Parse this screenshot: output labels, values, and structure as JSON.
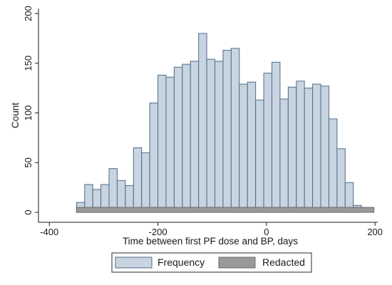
{
  "chart_data": {
    "type": "bar",
    "title": "",
    "xlabel": "Time between first PF dose and BP, days",
    "ylabel": "Count",
    "xlim": [
      -420,
      205
    ],
    "ylim": [
      -10,
      205
    ],
    "x_ticks": [
      -400,
      -200,
      0,
      200
    ],
    "y_ticks": [
      0,
      50,
      100,
      150,
      200
    ],
    "bin_width": 15,
    "grid": false,
    "legend_position": "bottom",
    "series": [
      {
        "name": "Frequency",
        "color": "#c8d4e0",
        "edge_color": "#4f6c8a",
        "bin_starts": [
          -350,
          -335,
          -320,
          -305,
          -290,
          -275,
          -260,
          -245,
          -230,
          -215,
          -200,
          -185,
          -170,
          -155,
          -140,
          -125,
          -110,
          -95,
          -80,
          -65,
          -50,
          -35,
          -20,
          -5,
          10,
          25,
          40,
          55,
          70,
          85,
          100,
          115,
          130,
          145,
          160,
          175,
          190
        ],
        "values": [
          10,
          28,
          23,
          28,
          44,
          32,
          27,
          65,
          60,
          110,
          138,
          136,
          146,
          149,
          152,
          180,
          154,
          152,
          163,
          165,
          129,
          131,
          113,
          140,
          151,
          114,
          126,
          132,
          125,
          129,
          127,
          94,
          64,
          30,
          7,
          0,
          0
        ]
      },
      {
        "name": "Redacted",
        "color": "#999999",
        "edge_color": "#6b6b6b",
        "bin_start": -350,
        "bin_end": 198,
        "value": 5
      }
    ]
  }
}
